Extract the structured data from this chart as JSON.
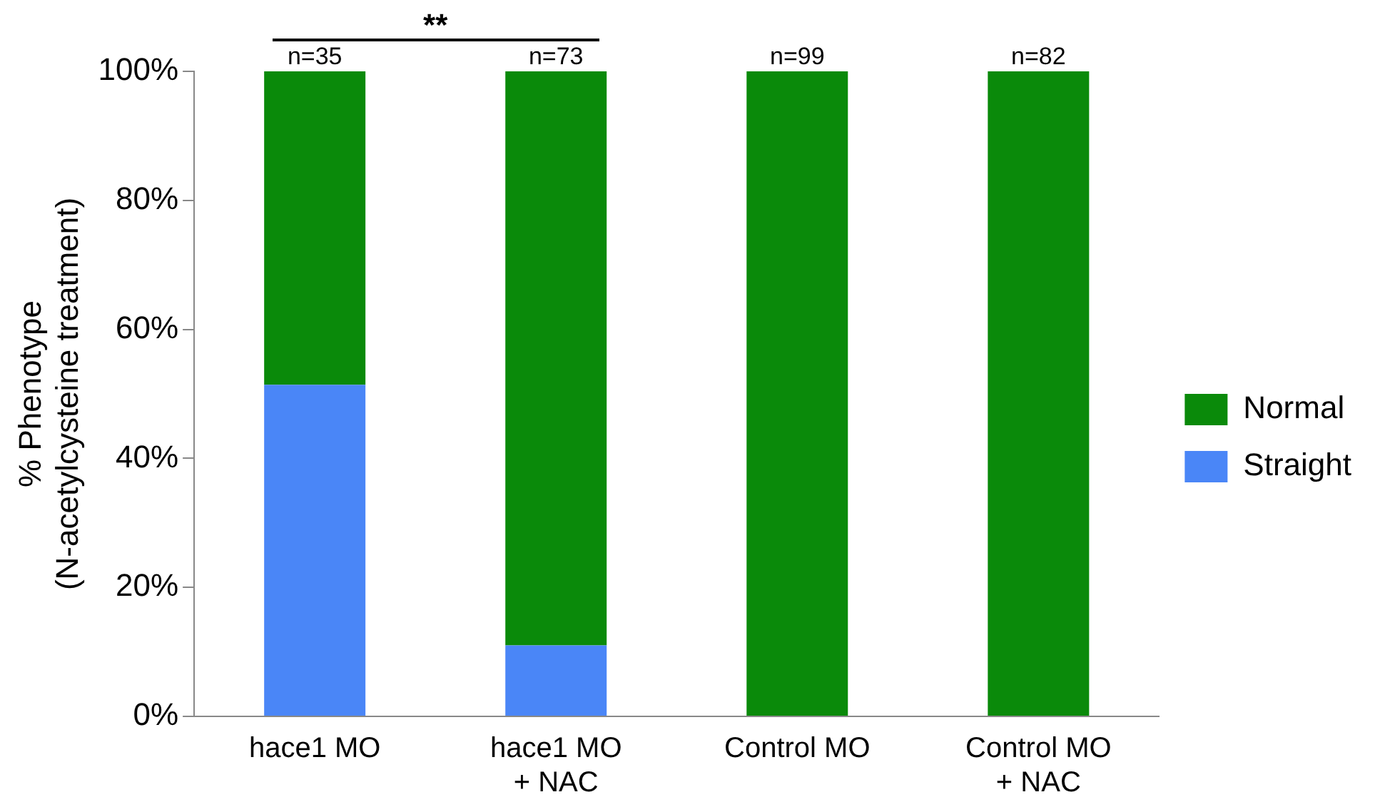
{
  "chart_data": {
    "type": "bar",
    "stacked": true,
    "ylabel": "% Phenotype\n(N-acetylcysteine treatment)",
    "categories": [
      "hace1 MO",
      "hace1 MO\n+ NAC",
      "Control MO",
      "Control MO\n+ NAC"
    ],
    "series": [
      {
        "name": "Straight",
        "color": "#4a86f7",
        "values": [
          51.4,
          11,
          0,
          0
        ]
      },
      {
        "name": "Normal",
        "color": "#0a8a0a",
        "values": [
          48.6,
          89,
          100,
          100
        ]
      }
    ],
    "ylim": [
      0,
      100
    ],
    "yticks": [
      {
        "value": 0,
        "label": "0%"
      },
      {
        "value": 20,
        "label": "20%"
      },
      {
        "value": 40,
        "label": "40%"
      },
      {
        "value": 60,
        "label": "60%"
      },
      {
        "value": 80,
        "label": "80%"
      },
      {
        "value": 100,
        "label": "100%"
      }
    ],
    "grid": false,
    "legend": "right",
    "annotations": [
      {
        "text": "n=35",
        "x": "hace1 MO",
        "y": 100
      },
      {
        "text": "n=73",
        "x": "hace1 MO\n+ NAC",
        "y": 100
      },
      {
        "text": "n=99",
        "x": "Control MO",
        "y": 100
      },
      {
        "text": "n=82",
        "x": "Control MO\n+ NAC",
        "y": 100
      },
      "**"
    ]
  }
}
